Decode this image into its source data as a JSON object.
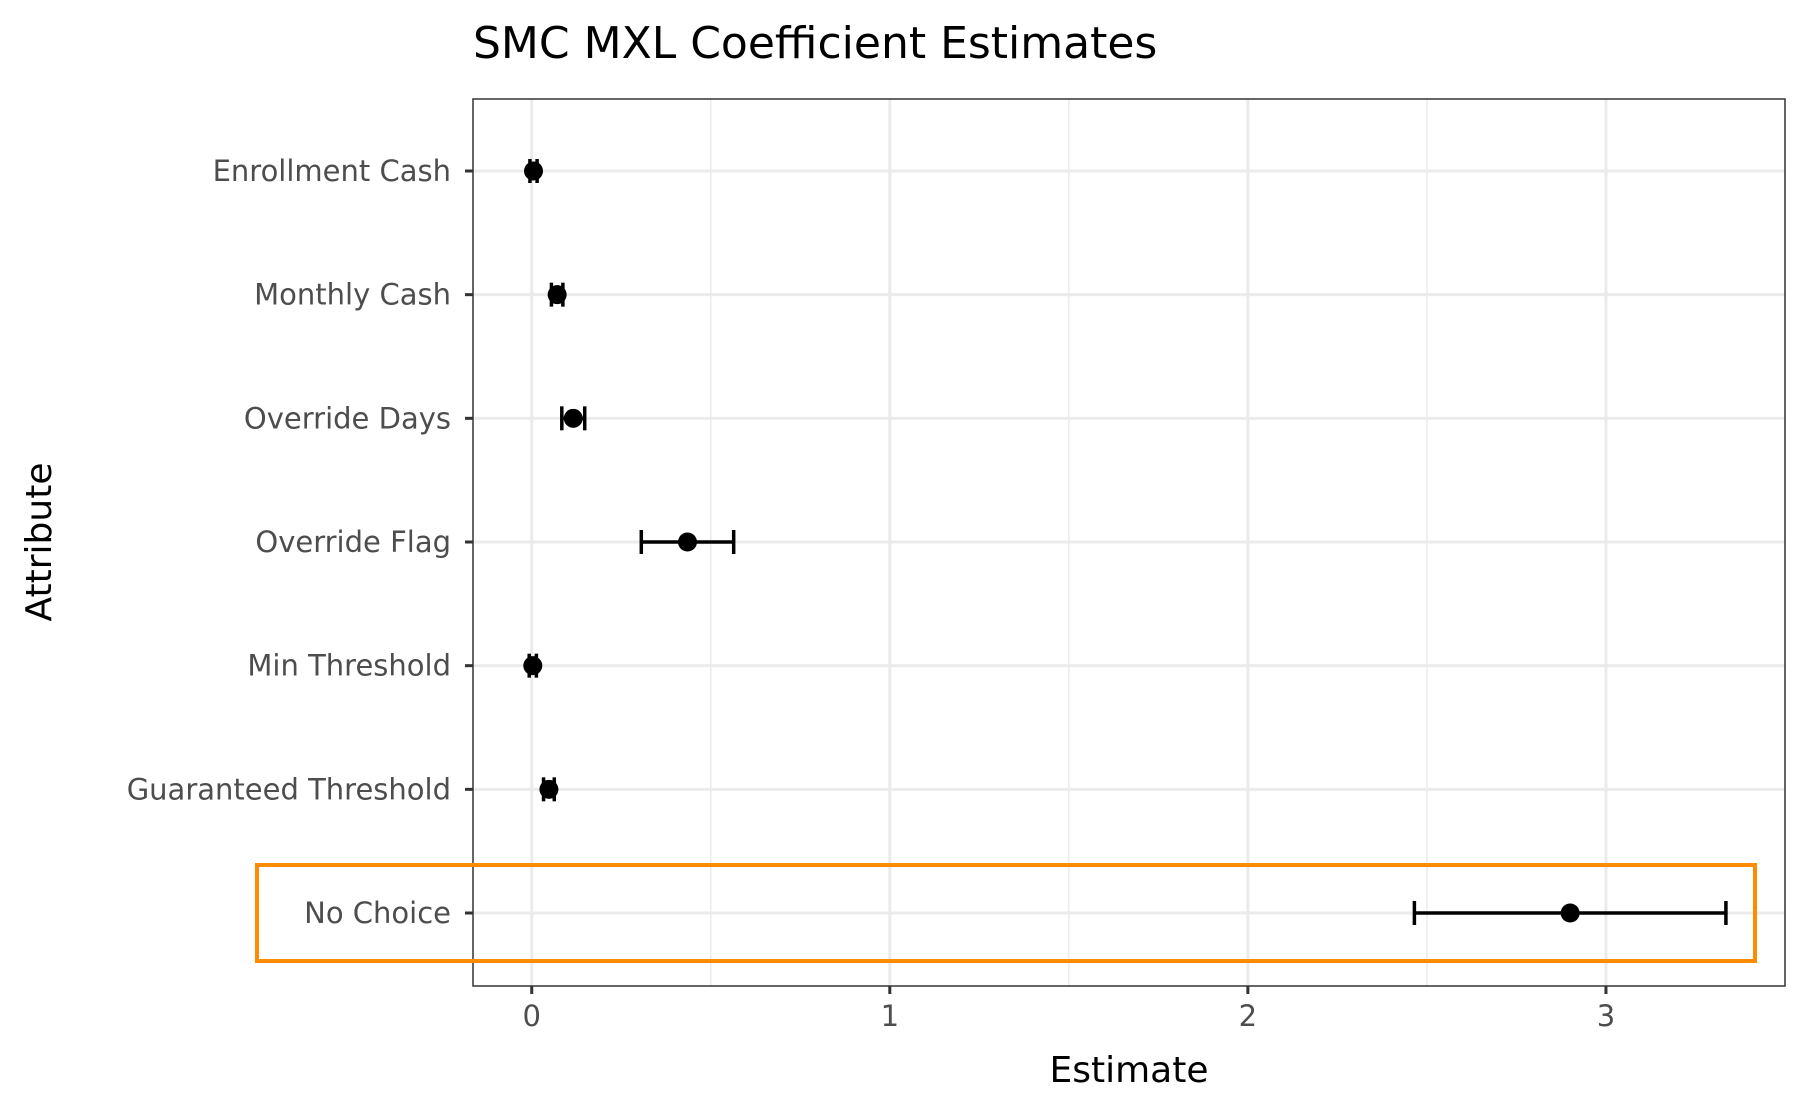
{
  "chart_data": {
    "type": "errorbar",
    "title": "SMC MXL Coefficient Estimates",
    "xlabel": "Estimate",
    "ylabel": "Attribute",
    "xlim": [
      -0.164,
      3.5
    ],
    "xticks": [
      0,
      1,
      2,
      3
    ],
    "grid": true,
    "categories": [
      "Enrollment Cash",
      "Monthly Cash",
      "Override Days",
      "Override Flag",
      "Min Threshold",
      "Guaranteed Threshold",
      "No Choice"
    ],
    "estimates": [
      0.005,
      0.071,
      0.116,
      0.435,
      0.003,
      0.048,
      2.9
    ],
    "lower": [
      -0.005,
      0.055,
      0.084,
      0.306,
      -0.007,
      0.033,
      2.465
    ],
    "upper": [
      0.015,
      0.087,
      0.148,
      0.564,
      0.013,
      0.063,
      3.335
    ],
    "highlight": {
      "category": "No Choice",
      "color": "#FF8C00"
    }
  }
}
